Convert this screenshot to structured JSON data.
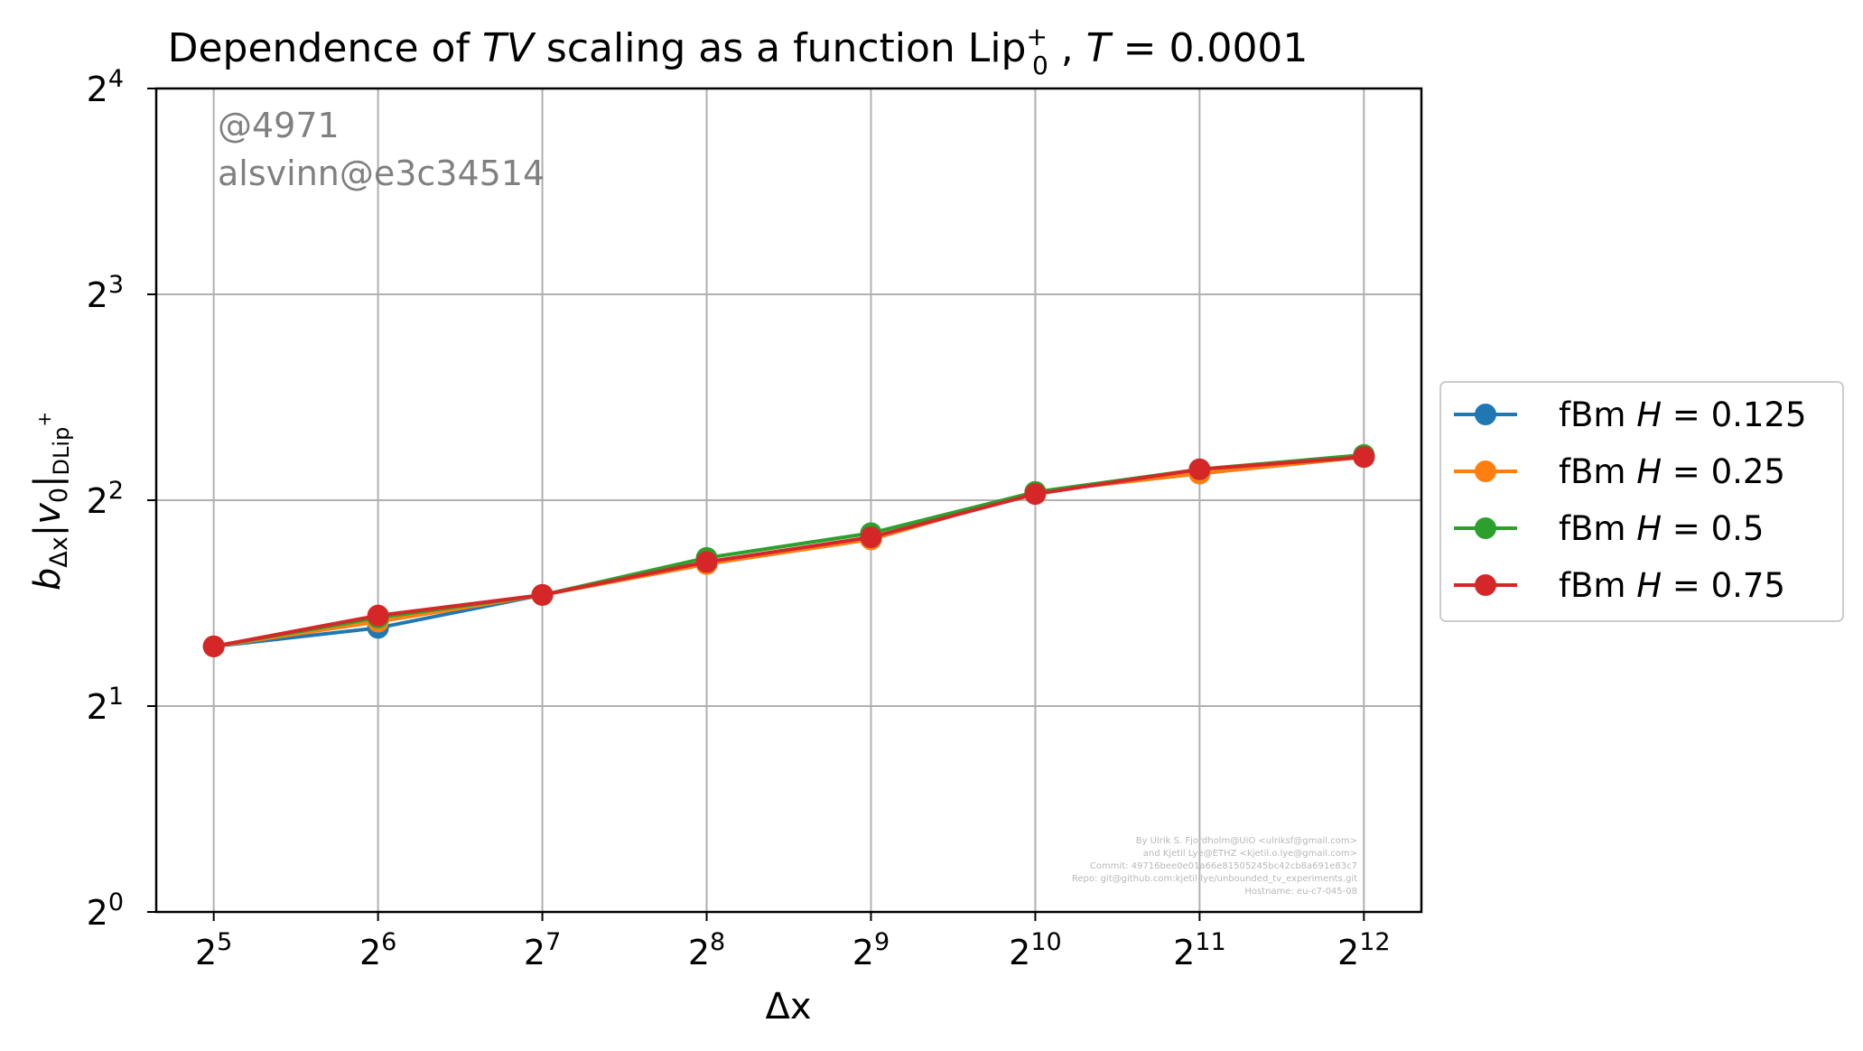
{
  "chart_data": {
    "type": "line",
    "title": {
      "prefix": "Dependence of ",
      "tv": "TV",
      "middle": " scaling as a function Lip",
      "sup": "+",
      "sub": "0",
      "suffix": " , ",
      "t_label": "T",
      "t_value": " = 0.0001"
    },
    "xlabel": "Δx",
    "ylabel": {
      "b": "b",
      "b_sub": "Δx",
      "mid": "|v",
      "v_sub": "0",
      "bar": "|",
      "tail_sub": "DLip",
      "tail_sup": "+"
    },
    "x_scale": "log2",
    "y_scale": "log2",
    "x_ticks": [
      {
        "base": "2",
        "exp": "5"
      },
      {
        "base": "2",
        "exp": "6"
      },
      {
        "base": "2",
        "exp": "7"
      },
      {
        "base": "2",
        "exp": "8"
      },
      {
        "base": "2",
        "exp": "9"
      },
      {
        "base": "2",
        "exp": "10"
      },
      {
        "base": "2",
        "exp": "11"
      },
      {
        "base": "2",
        "exp": "12"
      }
    ],
    "y_ticks": [
      {
        "base": "2",
        "exp": "0"
      },
      {
        "base": "2",
        "exp": "1"
      },
      {
        "base": "2",
        "exp": "2"
      },
      {
        "base": "2",
        "exp": "3"
      },
      {
        "base": "2",
        "exp": "4"
      }
    ],
    "x_exponents": [
      5,
      6,
      7,
      8,
      9,
      10,
      11,
      12
    ],
    "ylim_exponents": [
      0,
      4
    ],
    "xlim_exponents": [
      4.65,
      12.35
    ],
    "grid": true,
    "legend_position": "outside right",
    "series": [
      {
        "name_prefix": "fBm ",
        "name_var": "H",
        "name_value": " = 0.125",
        "color": "#1f77b4",
        "y_exponents": [
          1.29,
          1.38,
          1.54,
          1.69,
          1.81,
          2.04,
          2.13,
          2.21
        ]
      },
      {
        "name_prefix": "fBm ",
        "name_var": "H",
        "name_value": " = 0.25",
        "color": "#ff7f0e",
        "y_exponents": [
          1.29,
          1.41,
          1.54,
          1.69,
          1.81,
          2.04,
          2.13,
          2.21
        ]
      },
      {
        "name_prefix": "fBm ",
        "name_var": "H",
        "name_value": " = 0.5",
        "color": "#2ca02c",
        "y_exponents": [
          1.29,
          1.43,
          1.54,
          1.72,
          1.84,
          2.04,
          2.15,
          2.22
        ]
      },
      {
        "name_prefix": "fBm ",
        "name_var": "H",
        "name_value": " = 0.75",
        "color": "#d62728",
        "y_exponents": [
          1.29,
          1.44,
          1.54,
          1.7,
          1.82,
          2.03,
          2.15,
          2.21
        ]
      }
    ]
  },
  "watermark": {
    "line1": "@4971",
    "line2": "alsvinn@e3c34514"
  },
  "credits": [
    "By Ulrik S. Fjordholm@UiO <ulriksf@gmail.com>",
    "and Kjetil Lye@ETHZ <kjetil.o.lye@gmail.com>",
    "Commit: 49716bee0e01a66e81505245bc42cb8a691e83c7",
    "Repo: git@github.com:kjetil-lye/unbounded_tv_experiments.git",
    "Hostname: eu-c7-045-08"
  ]
}
